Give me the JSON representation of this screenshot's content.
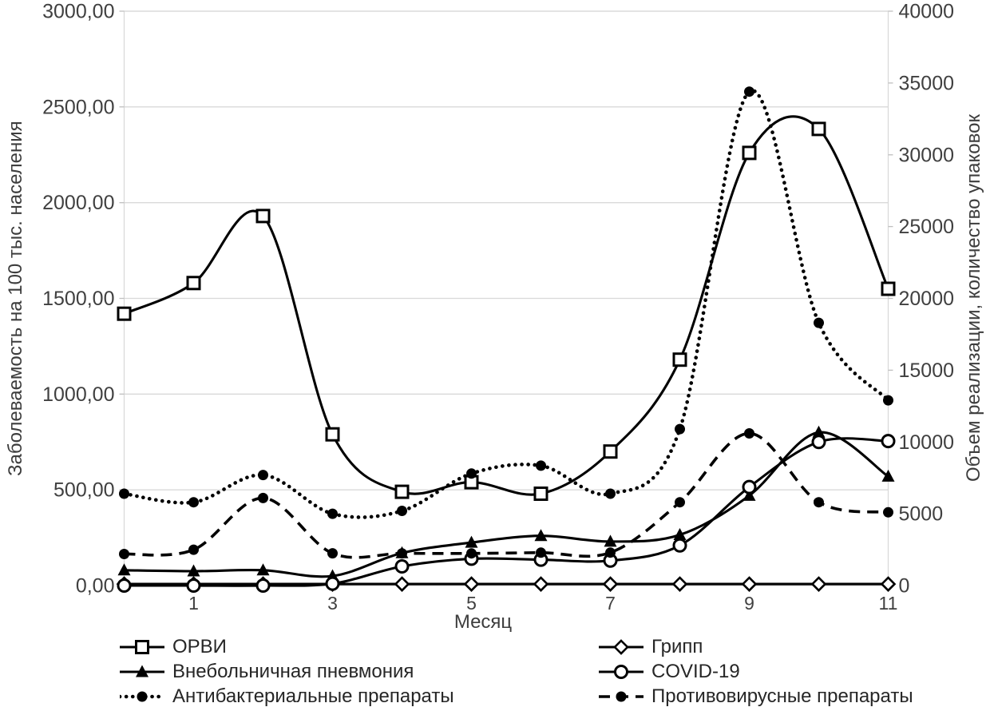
{
  "chart_data": {
    "type": "line",
    "title": "",
    "xlabel": "Месяц",
    "x": [
      0,
      1,
      2,
      3,
      4,
      5,
      6,
      7,
      8,
      9,
      10,
      11
    ],
    "x_tick_positions": [
      1,
      3,
      5,
      7,
      9,
      11
    ],
    "x_tick_labels": [
      "1",
      "3",
      "5",
      "7",
      "9",
      "11"
    ],
    "grid": "horizontal",
    "smoothed": true,
    "legend_position": "bottom, two columns",
    "left_axis": {
      "title": "Заболеваемость на 100 тыс. населения",
      "min": 0,
      "max": 3000,
      "step": 500,
      "tick_labels": [
        "0,00",
        "500,00",
        "1000,00",
        "1500,00",
        "2000,00",
        "2500,00",
        "3000,00"
      ]
    },
    "right_axis": {
      "title": "Объем реализации, количество упаковок",
      "min": 0,
      "max": 40000,
      "step": 5000,
      "tick_labels": [
        "0",
        "5000",
        "10000",
        "15000",
        "20000",
        "25000",
        "30000",
        "35000",
        "40000"
      ]
    },
    "series": [
      {
        "name": "ОРВИ",
        "axis": "left",
        "line": "solid",
        "marker": "open-square",
        "values": [
          1420,
          1580,
          1930,
          790,
          490,
          540,
          480,
          700,
          1180,
          2260,
          2385,
          1550
        ]
      },
      {
        "name": "Грипп",
        "axis": "left",
        "line": "solid",
        "marker": "open-diamond",
        "values": [
          8,
          8,
          8,
          8,
          8,
          8,
          8,
          8,
          8,
          8,
          8,
          8
        ]
      },
      {
        "name": "Внебольничная пневмония",
        "axis": "left",
        "line": "solid",
        "marker": "filled-triangle",
        "values": [
          80,
          75,
          80,
          50,
          170,
          225,
          260,
          230,
          265,
          470,
          800,
          570
        ]
      },
      {
        "name": "COVID-19",
        "axis": "left",
        "line": "solid",
        "marker": "open-circle",
        "values": [
          0,
          0,
          0,
          10,
          100,
          140,
          135,
          130,
          210,
          515,
          750,
          755
        ]
      },
      {
        "name": "Антибактериальные препараты",
        "axis": "right",
        "line": "dotted",
        "marker": "filled-circle",
        "values": [
          6400,
          5800,
          7700,
          5000,
          5200,
          7800,
          8350,
          6400,
          10900,
          34400,
          18300,
          12900
        ]
      },
      {
        "name": "Противовирусные препараты",
        "axis": "right",
        "line": "dashed",
        "marker": "filled-circle",
        "values": [
          2200,
          2500,
          6100,
          2250,
          2240,
          2240,
          2290,
          2300,
          5800,
          10600,
          5800,
          5100
        ]
      }
    ],
    "colors": {
      "series": "#000000",
      "grid": "#d9d9d9",
      "tick_text": "#404040"
    },
    "legend_columns": [
      [
        0,
        2,
        4
      ],
      [
        1,
        3,
        5
      ]
    ]
  }
}
